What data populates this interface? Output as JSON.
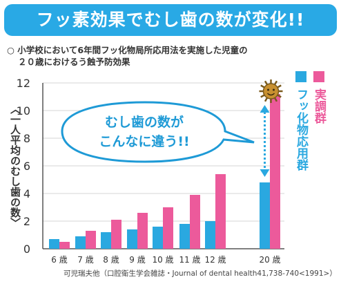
{
  "banner": {
    "title": "フッ素効果でむし歯の数が変化!!"
  },
  "subtitle": {
    "line1": "○ 小学校において6年間フッ化物局所応用法を実施した児童の",
    "line2": "２０歳におけるう蝕予防効果"
  },
  "callout": {
    "line1": "むし歯の数が",
    "line2": "こんなに違う!!"
  },
  "footer": {
    "citation": "可児瑞夫他（口腔衛生学会雑誌・Journal of dental health41,738-740<1991>）"
  },
  "colors": {
    "fluoride": "#2aa8e0",
    "control": "#ec5a9b",
    "banner": "#29a9e5",
    "callout_border": "#1e9ad6"
  },
  "chart_data": {
    "type": "bar",
    "title": "",
    "ylabel": "一人平均のむし歯の数",
    "xlabel": "",
    "ylim": [
      0,
      12
    ],
    "yticks": [
      0,
      2,
      4,
      6,
      8,
      10,
      12
    ],
    "grid": true,
    "legend_position": "right",
    "categories": [
      "6 歳",
      "7 歳",
      "8 歳",
      "9 歳",
      "10 歳",
      "11 歳",
      "12 歳",
      "20 歳"
    ],
    "series": [
      {
        "name": "フッ化物応用群",
        "color": "#2aa8e0",
        "values": [
          0.7,
          0.9,
          1.2,
          1.4,
          1.6,
          1.8,
          2.0,
          4.8
        ]
      },
      {
        "name": "実調群",
        "color": "#ec5a9b",
        "values": [
          0.5,
          1.3,
          2.1,
          2.6,
          3.0,
          3.9,
          5.4,
          11.2
        ]
      }
    ]
  }
}
